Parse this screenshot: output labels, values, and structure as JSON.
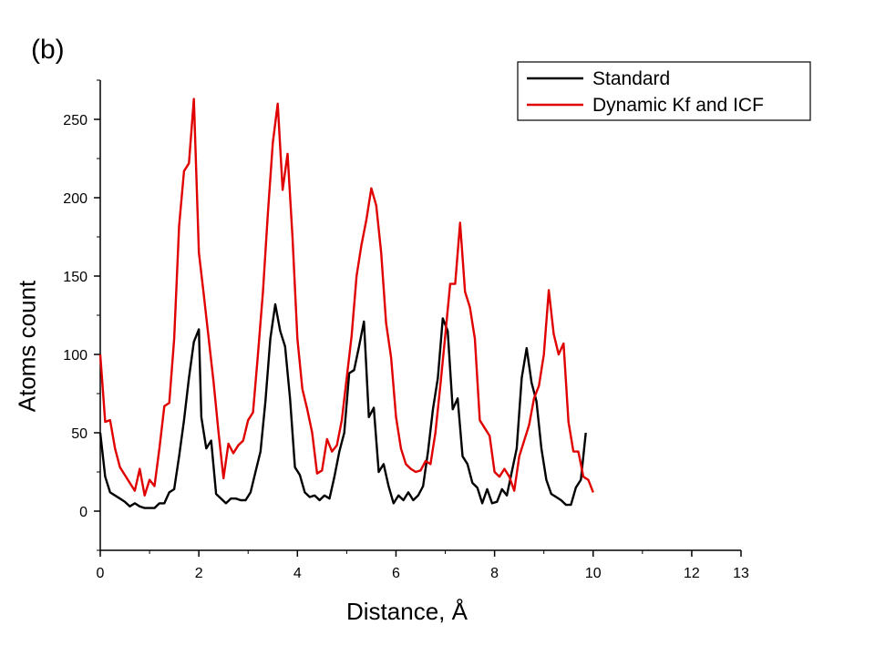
{
  "panel_label": "(b)",
  "chart_data": {
    "type": "line",
    "xlabel": "Distance, Å",
    "ylabel": "Atoms count",
    "xlim": [
      0,
      13
    ],
    "ylim": [
      -25,
      275
    ],
    "x_ticks": [
      0,
      2,
      4,
      6,
      8,
      10,
      12
    ],
    "y_ticks": [
      0,
      50,
      100,
      150,
      200,
      250
    ],
    "grid": false,
    "legend": "top-right",
    "series": [
      {
        "name": "Standard",
        "color": "#000000",
        "points": [
          [
            0,
            50
          ],
          [
            0.1,
            22
          ],
          [
            0.2,
            12
          ],
          [
            0.3,
            10
          ],
          [
            0.4,
            8
          ],
          [
            0.5,
            6
          ],
          [
            0.6,
            3
          ],
          [
            0.7,
            5
          ],
          [
            0.8,
            3
          ],
          [
            0.9,
            2
          ],
          [
            1.0,
            2
          ],
          [
            1.1,
            2
          ],
          [
            1.2,
            5
          ],
          [
            1.3,
            5
          ],
          [
            1.4,
            12
          ],
          [
            1.5,
            14
          ],
          [
            1.6,
            35
          ],
          [
            1.7,
            58
          ],
          [
            1.8,
            85
          ],
          [
            1.9,
            108
          ],
          [
            2.0,
            116
          ],
          [
            2.05,
            60
          ],
          [
            2.15,
            40
          ],
          [
            2.25,
            45
          ],
          [
            2.35,
            11
          ],
          [
            2.45,
            8
          ],
          [
            2.55,
            5
          ],
          [
            2.65,
            8
          ],
          [
            2.75,
            8
          ],
          [
            2.85,
            7
          ],
          [
            2.95,
            7
          ],
          [
            3.05,
            12
          ],
          [
            3.15,
            25
          ],
          [
            3.25,
            38
          ],
          [
            3.35,
            70
          ],
          [
            3.45,
            110
          ],
          [
            3.55,
            132
          ],
          [
            3.65,
            115
          ],
          [
            3.75,
            105
          ],
          [
            3.85,
            72
          ],
          [
            3.95,
            28
          ],
          [
            4.05,
            23
          ],
          [
            4.15,
            12
          ],
          [
            4.25,
            9
          ],
          [
            4.35,
            10
          ],
          [
            4.45,
            7
          ],
          [
            4.55,
            10
          ],
          [
            4.65,
            8
          ],
          [
            4.75,
            22
          ],
          [
            4.85,
            38
          ],
          [
            4.95,
            50
          ],
          [
            5.05,
            88
          ],
          [
            5.15,
            90
          ],
          [
            5.25,
            105
          ],
          [
            5.35,
            121
          ],
          [
            5.45,
            60
          ],
          [
            5.55,
            66
          ],
          [
            5.65,
            25
          ],
          [
            5.75,
            30
          ],
          [
            5.85,
            16
          ],
          [
            5.95,
            5
          ],
          [
            6.05,
            10
          ],
          [
            6.15,
            7
          ],
          [
            6.25,
            12
          ],
          [
            6.35,
            7
          ],
          [
            6.45,
            10
          ],
          [
            6.55,
            16
          ],
          [
            6.65,
            38
          ],
          [
            6.75,
            65
          ],
          [
            6.85,
            85
          ],
          [
            6.95,
            123
          ],
          [
            7.05,
            115
          ],
          [
            7.15,
            65
          ],
          [
            7.25,
            72
          ],
          [
            7.35,
            35
          ],
          [
            7.45,
            30
          ],
          [
            7.55,
            18
          ],
          [
            7.65,
            15
          ],
          [
            7.75,
            5
          ],
          [
            7.85,
            14
          ],
          [
            7.95,
            5
          ],
          [
            8.05,
            6
          ],
          [
            8.15,
            14
          ],
          [
            8.25,
            10
          ],
          [
            8.35,
            25
          ],
          [
            8.45,
            40
          ],
          [
            8.55,
            85
          ],
          [
            8.65,
            104
          ],
          [
            8.75,
            82
          ],
          [
            8.85,
            70
          ],
          [
            8.95,
            40
          ],
          [
            9.05,
            20
          ],
          [
            9.15,
            11
          ],
          [
            9.25,
            9
          ],
          [
            9.35,
            7
          ],
          [
            9.45,
            4
          ],
          [
            9.55,
            4
          ],
          [
            9.65,
            15
          ],
          [
            9.75,
            20
          ],
          [
            9.85,
            50
          ]
        ]
      },
      {
        "name": "Dynamic Kf and ICF",
        "color": "#e00000",
        "points": [
          [
            0,
            100
          ],
          [
            0.1,
            57
          ],
          [
            0.2,
            58
          ],
          [
            0.3,
            40
          ],
          [
            0.4,
            28
          ],
          [
            0.5,
            23
          ],
          [
            0.6,
            18
          ],
          [
            0.7,
            13
          ],
          [
            0.8,
            27
          ],
          [
            0.9,
            10
          ],
          [
            1.0,
            20
          ],
          [
            1.1,
            16
          ],
          [
            1.2,
            40
          ],
          [
            1.3,
            67
          ],
          [
            1.4,
            69
          ],
          [
            1.5,
            110
          ],
          [
            1.6,
            182
          ],
          [
            1.7,
            217
          ],
          [
            1.8,
            222
          ],
          [
            1.9,
            263
          ],
          [
            2.0,
            165
          ],
          [
            2.1,
            138
          ],
          [
            2.2,
            110
          ],
          [
            2.3,
            82
          ],
          [
            2.4,
            50
          ],
          [
            2.5,
            21
          ],
          [
            2.6,
            43
          ],
          [
            2.7,
            37
          ],
          [
            2.8,
            42
          ],
          [
            2.9,
            45
          ],
          [
            3.0,
            58
          ],
          [
            3.1,
            63
          ],
          [
            3.2,
            100
          ],
          [
            3.3,
            140
          ],
          [
            3.4,
            190
          ],
          [
            3.5,
            235
          ],
          [
            3.6,
            260
          ],
          [
            3.7,
            205
          ],
          [
            3.8,
            228
          ],
          [
            3.9,
            175
          ],
          [
            4.0,
            110
          ],
          [
            4.1,
            78
          ],
          [
            4.2,
            65
          ],
          [
            4.3,
            50
          ],
          [
            4.4,
            24
          ],
          [
            4.5,
            26
          ],
          [
            4.6,
            46
          ],
          [
            4.7,
            38
          ],
          [
            4.8,
            42
          ],
          [
            4.9,
            58
          ],
          [
            5.0,
            85
          ],
          [
            5.1,
            112
          ],
          [
            5.2,
            150
          ],
          [
            5.3,
            170
          ],
          [
            5.4,
            186
          ],
          [
            5.5,
            206
          ],
          [
            5.6,
            195
          ],
          [
            5.7,
            165
          ],
          [
            5.8,
            120
          ],
          [
            5.9,
            98
          ],
          [
            6.0,
            60
          ],
          [
            6.1,
            40
          ],
          [
            6.2,
            30
          ],
          [
            6.3,
            27
          ],
          [
            6.4,
            25
          ],
          [
            6.5,
            26
          ],
          [
            6.6,
            32
          ],
          [
            6.7,
            30
          ],
          [
            6.8,
            50
          ],
          [
            6.9,
            80
          ],
          [
            7.0,
            112
          ],
          [
            7.1,
            145
          ],
          [
            7.2,
            145
          ],
          [
            7.3,
            184
          ],
          [
            7.4,
            140
          ],
          [
            7.5,
            130
          ],
          [
            7.6,
            110
          ],
          [
            7.7,
            58
          ],
          [
            7.8,
            53
          ],
          [
            7.9,
            48
          ],
          [
            8.0,
            25
          ],
          [
            8.1,
            22
          ],
          [
            8.2,
            27
          ],
          [
            8.3,
            22
          ],
          [
            8.4,
            13
          ],
          [
            8.5,
            35
          ],
          [
            8.6,
            45
          ],
          [
            8.7,
            55
          ],
          [
            8.8,
            72
          ],
          [
            8.9,
            80
          ],
          [
            9.0,
            100
          ],
          [
            9.1,
            141
          ],
          [
            9.2,
            113
          ],
          [
            9.3,
            100
          ],
          [
            9.4,
            107
          ],
          [
            9.5,
            57
          ],
          [
            9.6,
            38
          ],
          [
            9.7,
            38
          ],
          [
            9.8,
            22
          ],
          [
            9.9,
            20
          ],
          [
            10.0,
            12
          ]
        ]
      }
    ]
  }
}
